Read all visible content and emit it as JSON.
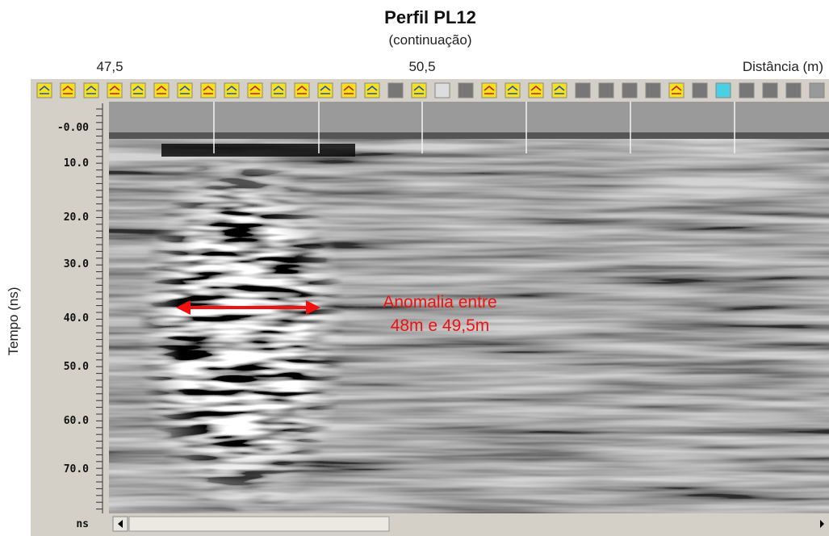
{
  "header": {
    "title": "Perfil PL12",
    "subtitle": "(continuação)"
  },
  "x_axis": {
    "labels": [
      "47,5",
      "50,5"
    ],
    "title": "Distância (m)"
  },
  "y_axis": {
    "title": "Tempo (ns)",
    "labels": [
      "-0.00",
      "10.0",
      "20.0",
      "30.0",
      "40.0",
      "50.0",
      "60.0",
      "70.0",
      "ns"
    ]
  },
  "annotation": {
    "lines": [
      "Anomalia entre",
      "48m e 49,5m"
    ]
  }
}
